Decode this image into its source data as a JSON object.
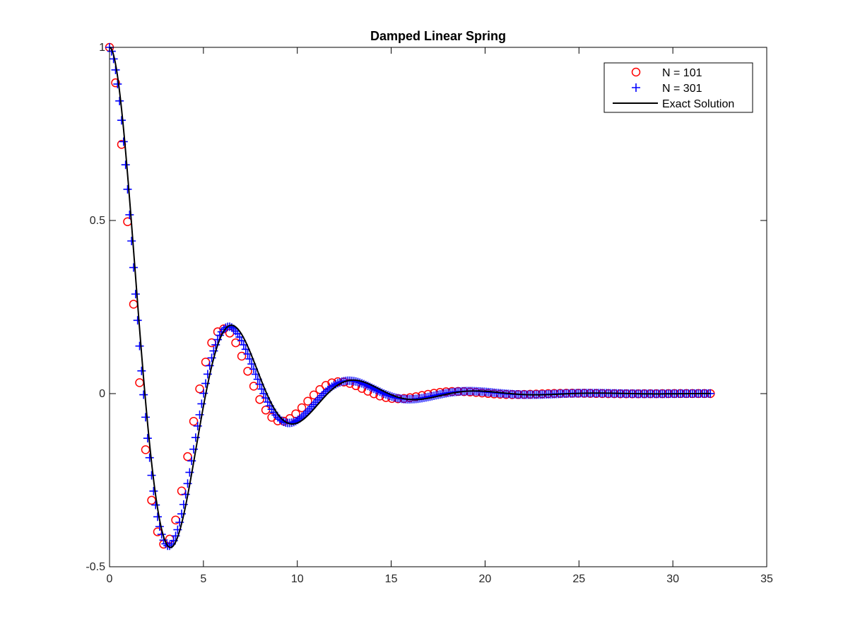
{
  "chart_data": {
    "type": "line",
    "title": "Damped Linear Spring",
    "xlabel": "",
    "ylabel": "",
    "xlim": [
      0,
      35
    ],
    "ylim": [
      -0.5,
      1
    ],
    "xticks": [
      0,
      5,
      10,
      15,
      20,
      25,
      30,
      35
    ],
    "yticks": [
      -0.5,
      0,
      0.5,
      1
    ],
    "grid": false,
    "legend_position": "top-right",
    "model": {
      "description": "damped oscillator sampled on [0, 32]",
      "t_max": 32,
      "zeta": 0.25,
      "omega_n": 1.0,
      "initial_value": 1.0
    },
    "series": [
      {
        "name": "N = 101",
        "marker": "circle",
        "color": "#ff0000",
        "points": 101,
        "style": "markers"
      },
      {
        "name": "N = 301",
        "marker": "plus",
        "color": "#0000ff",
        "points": 301,
        "style": "markers"
      },
      {
        "name": "Exact Solution",
        "marker": "none",
        "color": "#000000",
        "points": 1000,
        "style": "line"
      }
    ],
    "key_points": [
      {
        "x": 0,
        "y": 1.0
      },
      {
        "x": 3.2,
        "y": -0.45
      },
      {
        "x": 6.4,
        "y": 0.2
      },
      {
        "x": 9.6,
        "y": -0.09
      },
      {
        "x": 12.9,
        "y": 0.04
      },
      {
        "x": 16.1,
        "y": -0.02
      },
      {
        "x": 19.3,
        "y": 0.01
      },
      {
        "x": 32,
        "y": 0.0
      }
    ]
  }
}
